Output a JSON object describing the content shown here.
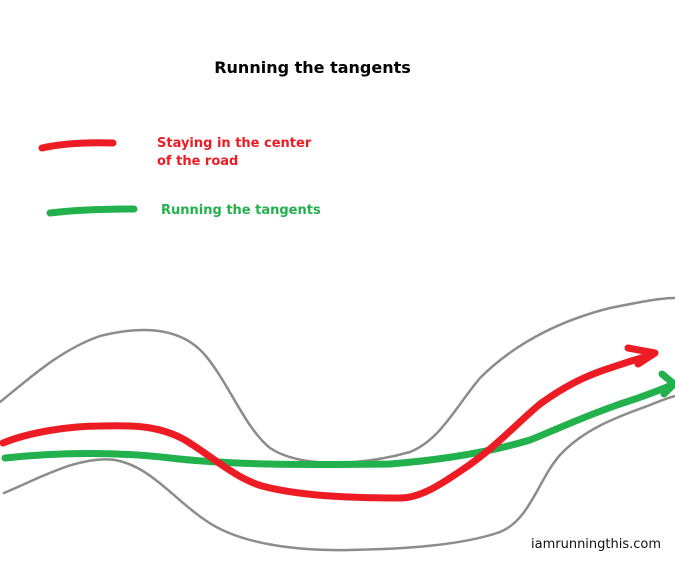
{
  "title": "Running the tangents",
  "legend": [
    {
      "label": "Staying in the center of the road",
      "color": "#ed1c24"
    },
    {
      "label": "Running the tangents",
      "color": "#22b14c"
    }
  ],
  "road_edge_color": "#8c8c8c",
  "watermark": "iamrunningthis.com"
}
